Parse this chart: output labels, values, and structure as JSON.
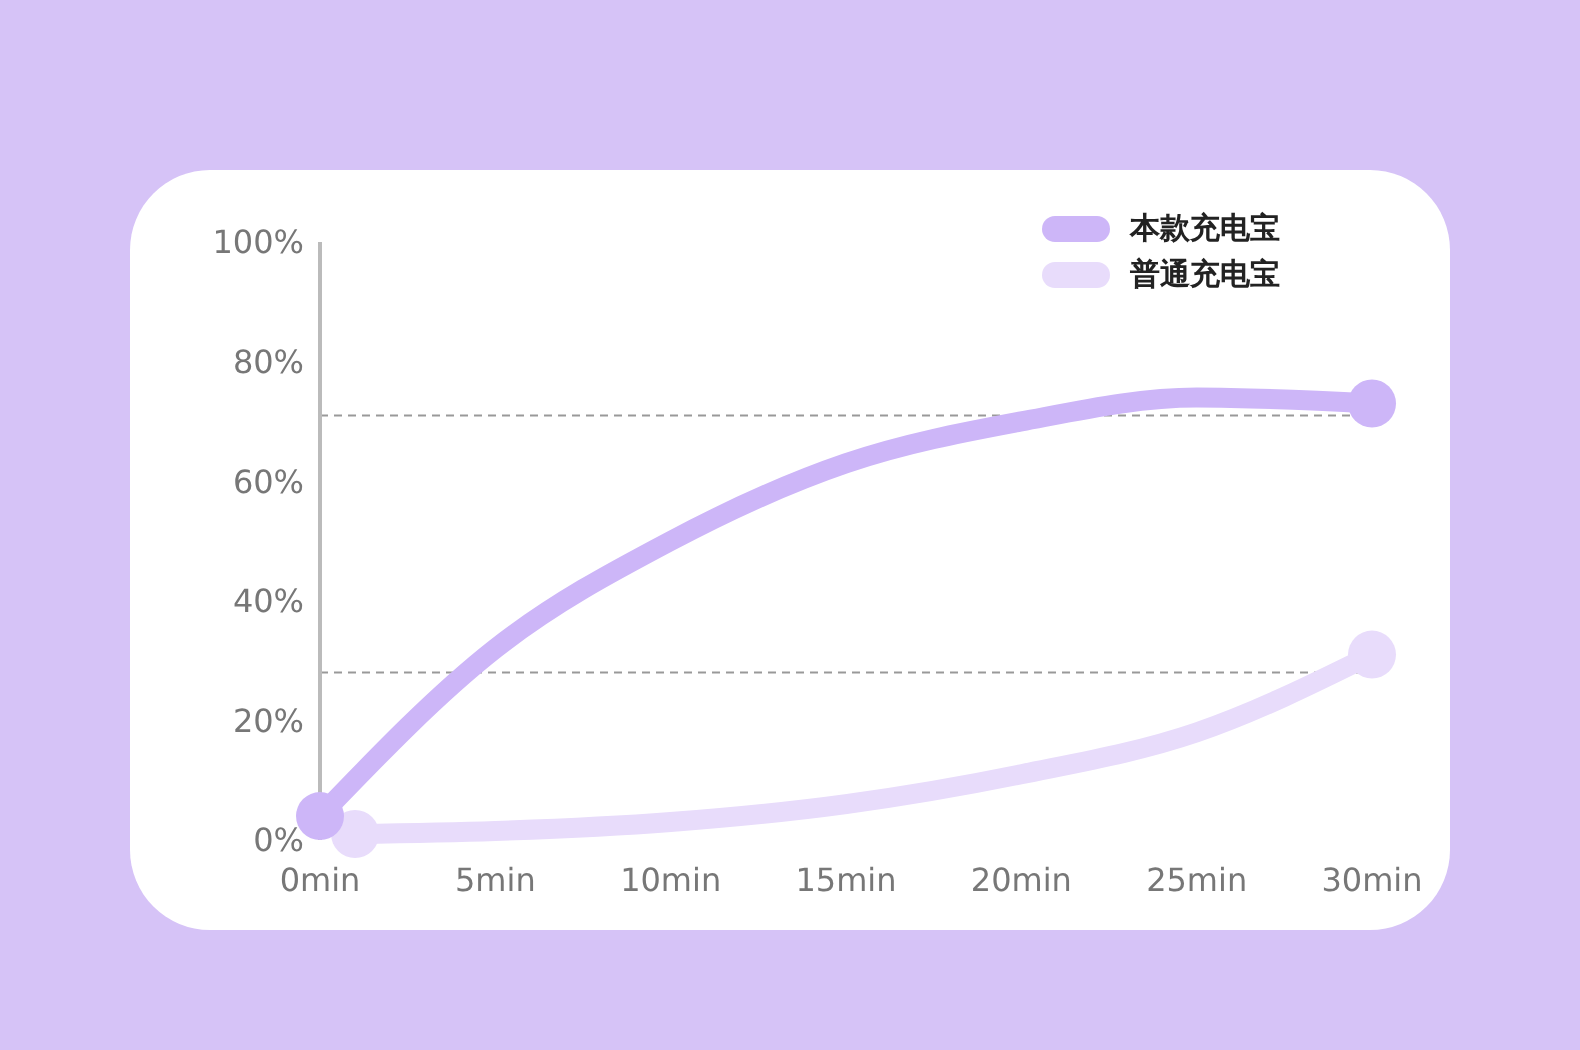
{
  "chart_data": {
    "type": "line",
    "x": [
      0,
      5,
      10,
      15,
      20,
      25,
      30
    ],
    "series": [
      {
        "name": "本款充电宝",
        "color": "#cdb6f8",
        "values": [
          4,
          32,
          50,
          63,
          70,
          74,
          73
        ]
      },
      {
        "name": "普通充电宝",
        "color": "#e8dcfb",
        "x": [
          1,
          5,
          10,
          15,
          20,
          25,
          30
        ],
        "values": [
          1,
          1.5,
          3,
          6,
          11,
          18,
          31
        ]
      }
    ],
    "xlim": [
      0,
      30
    ],
    "xticks": [
      {
        "value": 0,
        "label": "0min"
      },
      {
        "value": 5,
        "label": "5min"
      },
      {
        "value": 10,
        "label": "10min"
      },
      {
        "value": 15,
        "label": "15min"
      },
      {
        "value": 20,
        "label": "20min"
      },
      {
        "value": 25,
        "label": "25min"
      },
      {
        "value": 30,
        "label": "30min"
      }
    ],
    "ylim": [
      0,
      100
    ],
    "yticks": [
      {
        "value": 0,
        "label": "0%"
      },
      {
        "value": 20,
        "label": "20%"
      },
      {
        "value": 40,
        "label": "40%"
      },
      {
        "value": 60,
        "label": "60%"
      },
      {
        "value": 80,
        "label": "80%"
      },
      {
        "value": 100,
        "label": "100%"
      }
    ],
    "ref_lines": [
      {
        "axis": "y",
        "value": 71,
        "color": "#999999",
        "line_style": "dashed"
      },
      {
        "axis": "y",
        "value": 28,
        "color": "#999999",
        "line_style": "dashed"
      }
    ],
    "grid": false,
    "legend": "top right",
    "line_style": "solid"
  }
}
